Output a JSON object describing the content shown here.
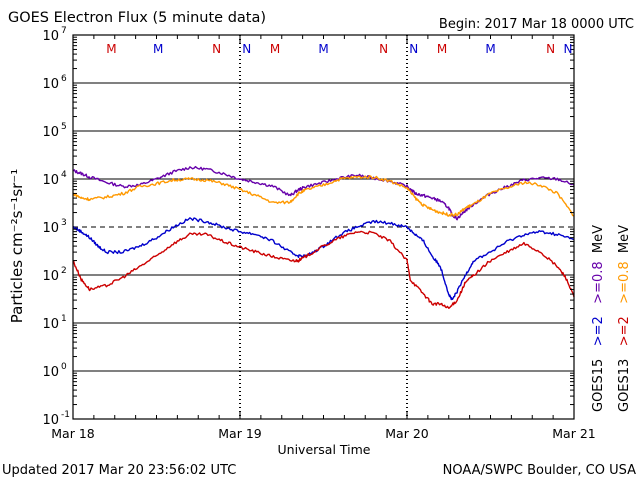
{
  "header": {
    "title": "GOES Electron Flux (5 minute data)",
    "begin": "Begin: 2017 Mar 18 0000 UTC"
  },
  "footer": {
    "updated": "Updated 2017 Mar 20 23:56:02 UTC",
    "credit": "NOAA/SWPC Boulder, CO USA"
  },
  "chart_data": {
    "type": "line",
    "title": "GOES Electron Flux (5 minute data)",
    "xlabel": "Universal Time",
    "ylabel": "Particles cm⁻²s⁻¹sr⁻¹",
    "y_scale": "log",
    "ylim": [
      0.1,
      10000000
    ],
    "xlim": [
      "2017-03-18 00:00",
      "2017-03-21 00:00"
    ],
    "x_tick_labels": [
      "Mar 18",
      "Mar 19",
      "Mar 20",
      "Mar 21"
    ],
    "y_tick_labels": [
      {
        "base": "10",
        "exp": "-1"
      },
      {
        "base": "10",
        "exp": "0"
      },
      {
        "base": "10",
        "exp": "1"
      },
      {
        "base": "10",
        "exp": "2"
      },
      {
        "base": "10",
        "exp": "3"
      },
      {
        "base": "10",
        "exp": "4"
      },
      {
        "base": "10",
        "exp": "5"
      },
      {
        "base": "10",
        "exp": "6"
      },
      {
        "base": "10",
        "exp": "7"
      }
    ],
    "threshold": {
      "value": 1000,
      "style": "dashed"
    },
    "day_markers": [
      {
        "letter": "M",
        "day": 0.23,
        "color": "#cc0000"
      },
      {
        "letter": "M",
        "day": 0.51,
        "color": "#0000cc"
      },
      {
        "letter": "N",
        "day": 0.86,
        "color": "#cc0000"
      },
      {
        "letter": "N",
        "day": 1.04,
        "color": "#0000cc"
      },
      {
        "letter": "M",
        "day": 1.21,
        "color": "#cc0000"
      },
      {
        "letter": "M",
        "day": 1.5,
        "color": "#0000cc"
      },
      {
        "letter": "N",
        "day": 1.86,
        "color": "#cc0000"
      },
      {
        "letter": "N",
        "day": 2.04,
        "color": "#0000cc"
      },
      {
        "letter": "M",
        "day": 2.21,
        "color": "#cc0000"
      },
      {
        "letter": "M",
        "day": 2.5,
        "color": "#0000cc"
      },
      {
        "letter": "N",
        "day": 2.86,
        "color": "#cc0000"
      },
      {
        "letter": "N",
        "day": 3.04,
        "color": "#0000cc"
      }
    ],
    "legend": {
      "placement": "right",
      "columns": [
        {
          "satellite": "GOES15",
          "low": ">=2",
          "high": ">=0.8",
          "low_color": "#0000cc",
          "high_color": "#6600aa"
        },
        {
          "satellite": "GOES13",
          "low": ">=2",
          "high": ">=0.8",
          "low_color": "#cc0000",
          "high_color": "#ff9900"
        }
      ],
      "unit": "MeV"
    },
    "series": [
      {
        "name": "GOES15 >=0.8 MeV",
        "color": "#6600aa",
        "x": [
          0,
          0.05,
          0.1,
          0.2,
          0.3,
          0.4,
          0.5,
          0.6,
          0.7,
          0.8,
          0.9,
          1.0,
          1.1,
          1.2,
          1.3,
          1.35,
          1.4,
          1.5,
          1.6,
          1.7,
          1.8,
          1.9,
          2.0,
          2.05,
          2.1,
          2.15,
          2.2,
          2.25,
          2.27,
          2.3,
          2.35,
          2.4,
          2.5,
          2.6,
          2.7,
          2.8,
          2.9,
          3.0
        ],
        "y": [
          15000,
          13000,
          11000,
          8500,
          7000,
          7500,
          10000,
          14000,
          17500,
          16000,
          13000,
          10000,
          8500,
          7000,
          4500,
          6000,
          7000,
          8500,
          10500,
          12000,
          10500,
          9000,
          7000,
          5000,
          4500,
          4000,
          3500,
          2500,
          1800,
          1500,
          2200,
          3000,
          5000,
          7000,
          9500,
          10500,
          10000,
          7500
        ]
      },
      {
        "name": "GOES13 >=0.8 MeV",
        "color": "#ff9900",
        "x": [
          0,
          0.05,
          0.1,
          0.2,
          0.3,
          0.4,
          0.5,
          0.6,
          0.7,
          0.8,
          0.9,
          1.0,
          1.1,
          1.2,
          1.3,
          1.35,
          1.4,
          1.5,
          1.6,
          1.7,
          1.8,
          1.9,
          2.0,
          2.05,
          2.1,
          2.15,
          2.2,
          2.25,
          2.3,
          2.35,
          2.4,
          2.5,
          2.6,
          2.7,
          2.8,
          2.9,
          3.0
        ],
        "y": [
          5000,
          4000,
          3800,
          4200,
          5000,
          7000,
          8000,
          9500,
          10000,
          9500,
          8000,
          6000,
          4500,
          3200,
          3300,
          5000,
          6000,
          7500,
          10000,
          11000,
          11000,
          9000,
          6500,
          4000,
          2800,
          2300,
          2000,
          1800,
          1800,
          2500,
          3000,
          5000,
          6500,
          8500,
          7500,
          5000,
          1700
        ]
      },
      {
        "name": "GOES15 >=2 MeV",
        "color": "#0000cc",
        "x": [
          0,
          0.05,
          0.1,
          0.15,
          0.2,
          0.3,
          0.4,
          0.5,
          0.6,
          0.7,
          0.8,
          0.9,
          1.0,
          1.1,
          1.2,
          1.3,
          1.35,
          1.4,
          1.5,
          1.6,
          1.7,
          1.8,
          1.9,
          2.0,
          2.05,
          2.1,
          2.15,
          2.2,
          2.25,
          2.27,
          2.3,
          2.35,
          2.4,
          2.5,
          2.6,
          2.7,
          2.8,
          2.9,
          3.0
        ],
        "y": [
          1000,
          800,
          600,
          400,
          300,
          300,
          400,
          600,
          1000,
          1500,
          1300,
          1000,
          800,
          700,
          500,
          300,
          250,
          250,
          400,
          700,
          1000,
          1300,
          1200,
          1000,
          700,
          500,
          250,
          150,
          40,
          30,
          45,
          100,
          200,
          300,
          500,
          700,
          800,
          700,
          550
        ]
      },
      {
        "name": "GOES13 >=2 MeV",
        "color": "#cc0000",
        "x": [
          0,
          0.05,
          0.1,
          0.2,
          0.3,
          0.4,
          0.5,
          0.6,
          0.7,
          0.8,
          0.9,
          1.0,
          1.1,
          1.2,
          1.3,
          1.35,
          1.4,
          1.5,
          1.6,
          1.7,
          1.8,
          1.9,
          2.0,
          2.02,
          2.1,
          2.15,
          2.2,
          2.25,
          2.3,
          2.35,
          2.4,
          2.5,
          2.6,
          2.7,
          2.8,
          2.9,
          2.95,
          3.0
        ],
        "y": [
          200,
          80,
          50,
          60,
          90,
          150,
          250,
          450,
          700,
          700,
          500,
          380,
          300,
          240,
          200,
          200,
          250,
          400,
          600,
          800,
          750,
          500,
          200,
          80,
          40,
          25,
          25,
          20,
          30,
          70,
          100,
          200,
          300,
          450,
          300,
          150,
          90,
          35
        ]
      }
    ]
  }
}
